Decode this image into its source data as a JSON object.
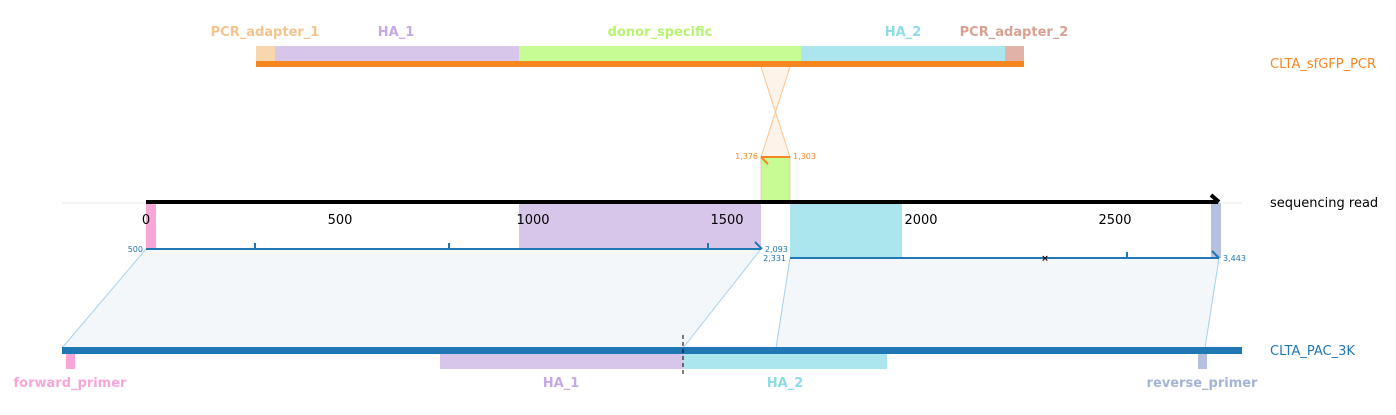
{
  "colors": {
    "pcr_adapter_1": "#f8d6ae",
    "pcr_adapter_1_text": "#f5c48c",
    "ha_1": "#d7c6ea",
    "ha_1_text": "#c4a9e4",
    "donor_specific": "#c7fc95",
    "donor_specific_text": "#b6f46e",
    "ha_2": "#abe5ee",
    "ha_2_text": "#8cdce8",
    "pcr_adapter_2": "#e1b3a8",
    "pcr_adapter_2_text": "#d9a191",
    "orange": "#f6861f",
    "blue": "#1f77b4",
    "light_blue_line": "#6fb0e0",
    "forward_primer": "#f8a6d8",
    "reverse_primer": "#b4c0dd",
    "reverse_primer_text": "#a4b4d6"
  },
  "top_construct": {
    "name": "CLTA_sfGFP_PCR",
    "features": [
      {
        "id": "pcr_adapter_1",
        "label": "PCR_adapter_1"
      },
      {
        "id": "ha_1",
        "label": "HA_1"
      },
      {
        "id": "donor_specific",
        "label": "donor_specific"
      },
      {
        "id": "ha_2",
        "label": "HA_2"
      },
      {
        "id": "pcr_adapter_2",
        "label": "PCR_adapter_2"
      }
    ],
    "alignment": {
      "left_label": "1,376",
      "right_label": "1,303"
    }
  },
  "read": {
    "name": "sequencing read",
    "axis_ticks": [
      "0",
      "500",
      "1000",
      "1500",
      "2000",
      "2500"
    ],
    "alignment_1": {
      "start_label": "500",
      "end_label": "2,093"
    },
    "alignment_2": {
      "start_label": "2,331",
      "end_label": "3,443"
    }
  },
  "bottom_construct": {
    "name": "CLTA_PAC_3K",
    "features": [
      {
        "id": "forward_primer",
        "label": "forward_primer"
      },
      {
        "id": "ha_1",
        "label": "HA_1"
      },
      {
        "id": "ha_2",
        "label": "HA_2"
      },
      {
        "id": "reverse_primer",
        "label": "reverse_primer"
      }
    ]
  }
}
